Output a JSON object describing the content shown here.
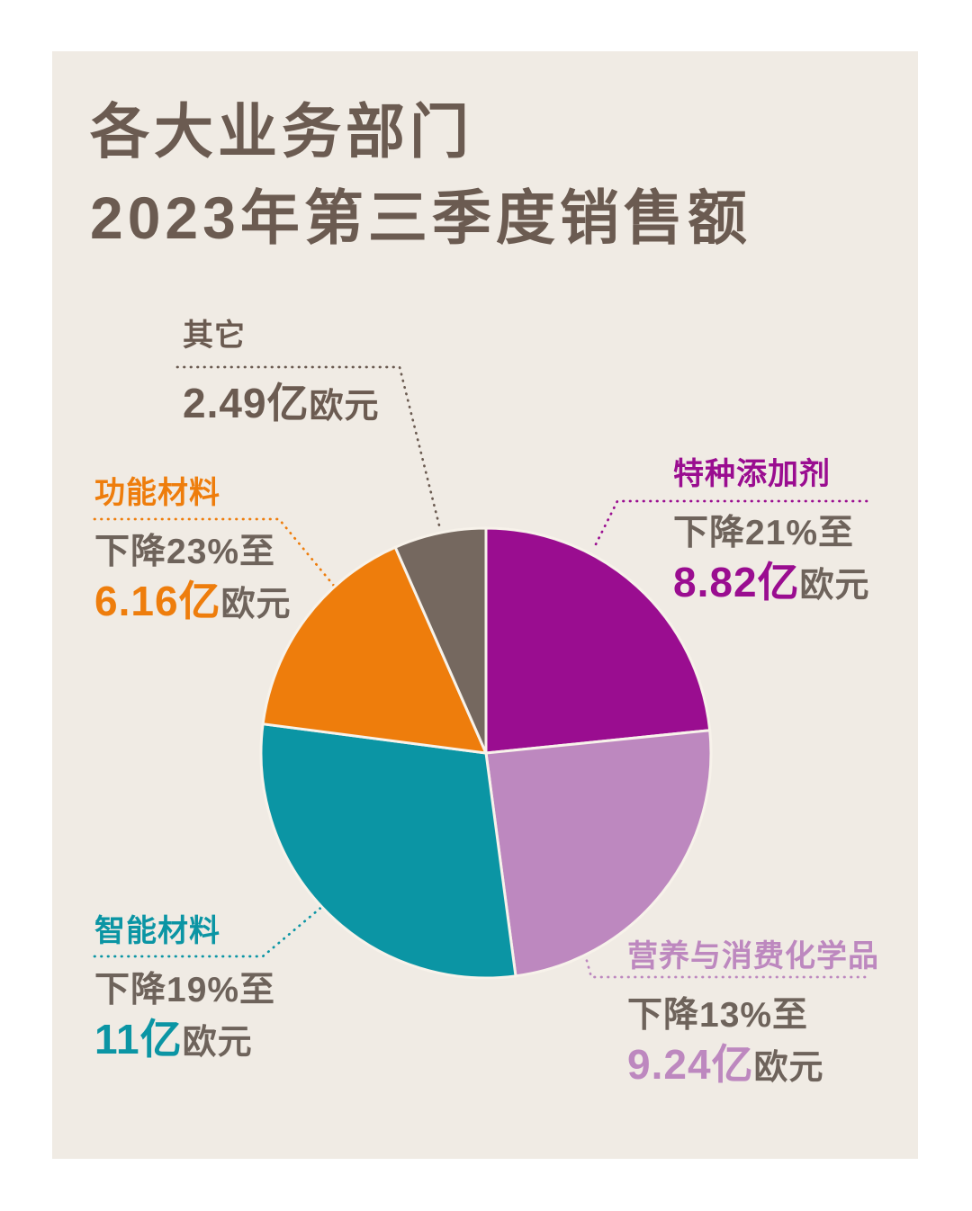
{
  "title": {
    "line1": "各大业务部门",
    "line2": "2023年第三季度销售额"
  },
  "colors": {
    "page_bg": "#FFFFFF",
    "panel_bg": "#F0EBE4",
    "title_text": "#6B5B51",
    "secondary_text": "#6E635B",
    "slice_gap": "#F7F2EA"
  },
  "segments": [
    {
      "name": "特种添加剂",
      "change": "下降21%至",
      "value_text": "8.82亿",
      "unit": "欧元",
      "value": 8.82,
      "color": "#9A0D90",
      "text_color": "#9A0D90",
      "line_color": "#9A0D90"
    },
    {
      "name": "营养与消费化学品",
      "change": "下降13%至",
      "value_text": "9.24亿",
      "unit": "欧元",
      "value": 9.24,
      "color": "#BD88BF",
      "text_color": "#BD88BF",
      "line_color": "#BD88BF"
    },
    {
      "name": "智能材料",
      "change": "下降19%至",
      "value_text": "11亿",
      "unit": "欧元",
      "value": 11,
      "color": "#0B95A4",
      "text_color": "#0B95A4",
      "line_color": "#0B95A4"
    },
    {
      "name": "功能材料",
      "change": "下降23%至",
      "value_text": "6.16亿",
      "unit": "欧元",
      "value": 6.16,
      "color": "#EE7D0C",
      "text_color": "#EE7D0C",
      "line_color": "#EE7D0C"
    },
    {
      "name": "其它",
      "change": "",
      "value_text": "2.49亿",
      "unit": "欧元",
      "value": 2.49,
      "color": "#75685F",
      "text_color": "#6B5B51",
      "line_color": "#6B5B51"
    }
  ],
  "chart_data": {
    "type": "pie",
    "title": "各大业务部门2023年第三季度销售额",
    "unit": "亿欧元",
    "categories": [
      "特种添加剂",
      "营养与消费化学品",
      "智能材料",
      "功能材料",
      "其它"
    ],
    "values": [
      8.82,
      9.24,
      11,
      6.16,
      2.49
    ],
    "changes_pct": [
      -21,
      -13,
      -19,
      -23,
      null
    ],
    "colors": [
      "#9A0D90",
      "#BD88BF",
      "#0B95A4",
      "#EE7D0C",
      "#75685F"
    ],
    "start_angle_deg": 0,
    "direction": "clockwise",
    "legend_position": "callouts",
    "grid": false
  }
}
